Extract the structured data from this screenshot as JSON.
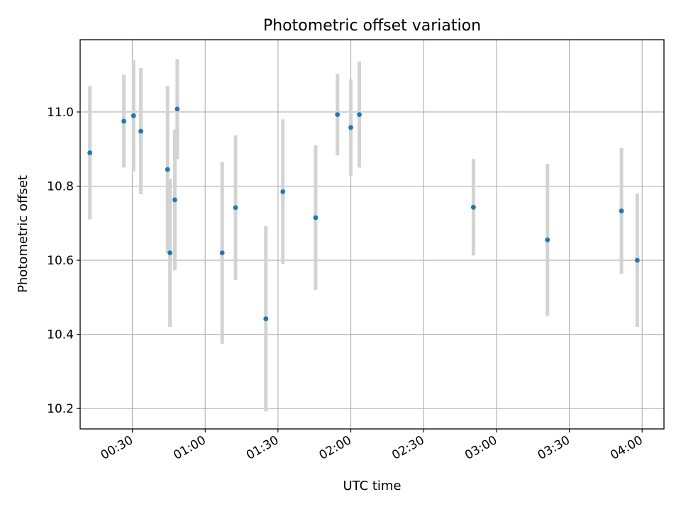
{
  "chart_data": {
    "type": "scatter",
    "title": "Photometric offset variation",
    "xlabel": "UTC time",
    "ylabel": "Photometric offset",
    "x_ticks": [
      "00:30",
      "01:00",
      "01:30",
      "02:00",
      "02:30",
      "03:00",
      "03:30",
      "04:00"
    ],
    "y_ticks": [
      "10.2",
      "10.4",
      "10.6",
      "10.8",
      "11.0"
    ],
    "xlim": [
      "00:08.5",
      "04:09"
    ],
    "ylim": [
      10.145,
      11.195
    ],
    "grid": true,
    "point_color": "#1f77b4",
    "errorbar_color": "#d3d3d3",
    "points": [
      {
        "x": "00:12.5",
        "y": 10.89,
        "err": 0.18
      },
      {
        "x": "00:26.5",
        "y": 10.975,
        "err": 0.125
      },
      {
        "x": "00:30.5",
        "y": 10.99,
        "err": 0.15
      },
      {
        "x": "00:33.5",
        "y": 10.948,
        "err": 0.17
      },
      {
        "x": "00:44.5",
        "y": 10.845,
        "err": 0.225
      },
      {
        "x": "00:45.5",
        "y": 10.62,
        "err": 0.2
      },
      {
        "x": "00:47.5",
        "y": 10.763,
        "err": 0.19
      },
      {
        "x": "00:48.5",
        "y": 11.008,
        "err": 0.135
      },
      {
        "x": "01:07",
        "y": 10.62,
        "err": 0.245
      },
      {
        "x": "01:12.5",
        "y": 10.742,
        "err": 0.195
      },
      {
        "x": "01:25",
        "y": 10.442,
        "err": 0.25
      },
      {
        "x": "01:32",
        "y": 10.785,
        "err": 0.195
      },
      {
        "x": "01:45.5",
        "y": 10.715,
        "err": 0.195
      },
      {
        "x": "01:54.5",
        "y": 10.993,
        "err": 0.11
      },
      {
        "x": "02:00",
        "y": 10.958,
        "err": 0.13
      },
      {
        "x": "02:03.5",
        "y": 10.993,
        "err": 0.143
      },
      {
        "x": "02:50.5",
        "y": 10.743,
        "err": 0.13
      },
      {
        "x": "03:21",
        "y": 10.655,
        "err": 0.205
      },
      {
        "x": "03:51.5",
        "y": 10.733,
        "err": 0.17
      },
      {
        "x": "03:58",
        "y": 10.6,
        "err": 0.18
      }
    ]
  }
}
